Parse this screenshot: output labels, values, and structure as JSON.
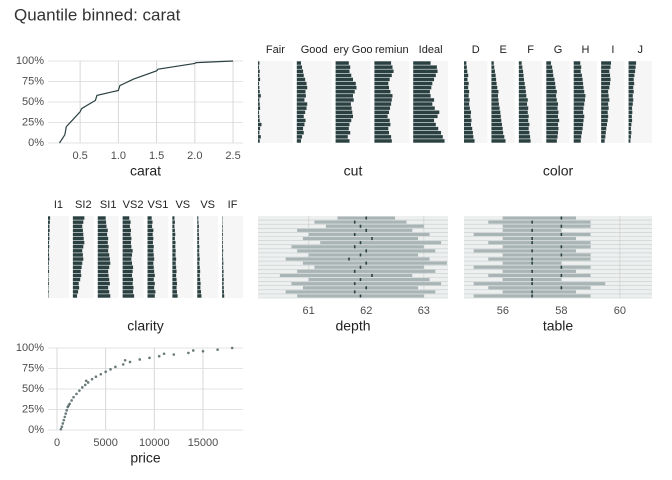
{
  "title": "Quantile binned: carat",
  "chart_data": [
    {
      "type": "line",
      "x_label": "carat",
      "x": [
        0.23,
        0.3,
        0.32,
        0.4,
        0.5,
        0.52,
        0.7,
        0.72,
        0.9,
        1.0,
        1.02,
        1.2,
        1.5,
        1.52,
        2.0,
        2.02,
        2.5
      ],
      "values": [
        0,
        10,
        20,
        28,
        38,
        42,
        52,
        58,
        62,
        64,
        70,
        78,
        88,
        90,
        97,
        98,
        100
      ],
      "xlim": [
        0.08,
        2.63
      ],
      "xticks": [
        0.5,
        {
          "value": 1,
          "label": "1.0"
        },
        1.5,
        {
          "value": 2,
          "label": "2.0"
        },
        2.5
      ],
      "ylim": [
        0,
        100
      ],
      "yticks": [
        {
          "value": 0,
          "label": "0%"
        },
        {
          "value": 25,
          "label": "25%"
        },
        {
          "value": 50,
          "label": "50%"
        },
        {
          "value": 75,
          "label": "75%"
        },
        {
          "value": 100,
          "label": "100%"
        }
      ],
      "color": "#2b4141"
    },
    {
      "type": "facet_bar",
      "x_label": "cut",
      "bins": [
        0,
        5,
        10,
        15,
        20,
        25,
        30,
        35,
        40,
        45,
        50,
        55,
        60,
        65,
        70,
        75,
        80,
        85,
        90,
        95,
        100
      ],
      "ylim": [
        0,
        100
      ],
      "xlim": [
        0,
        1
      ],
      "color": "#2b4141",
      "facets": [
        {
          "name": "Fair",
          "values": [
            0.05,
            0.08,
            0.04,
            0.06,
            0.1,
            0.05,
            0.04,
            0.03,
            0.06,
            0.05,
            0.04,
            0.08,
            0.05,
            0.04,
            0.03,
            0.06,
            0.04,
            0.05,
            0.03,
            0.04
          ]
        },
        {
          "name": "Good",
          "values": [
            0.12,
            0.15,
            0.2,
            0.18,
            0.22,
            0.25,
            0.2,
            0.24,
            0.28,
            0.3,
            0.22,
            0.26,
            0.25,
            0.3,
            0.28,
            0.24,
            0.2,
            0.18,
            0.15,
            0.12
          ]
        },
        {
          "name": "ery Goo",
          "values": [
            0.4,
            0.35,
            0.42,
            0.38,
            0.4,
            0.45,
            0.5,
            0.48,
            0.46,
            0.44,
            0.52,
            0.5,
            0.55,
            0.6,
            0.58,
            0.5,
            0.45,
            0.4,
            0.42,
            0.38
          ]
        },
        {
          "name": "remiun",
          "values": [
            0.5,
            0.48,
            0.42,
            0.4,
            0.46,
            0.44,
            0.38,
            0.42,
            0.45,
            0.48,
            0.5,
            0.52,
            0.46,
            0.42,
            0.4,
            0.44,
            0.5,
            0.55,
            0.52,
            0.48
          ]
        },
        {
          "name": "Ideal",
          "values": [
            0.9,
            0.85,
            0.8,
            0.72,
            0.65,
            0.6,
            0.7,
            0.75,
            0.62,
            0.55,
            0.6,
            0.5,
            0.48,
            0.52,
            0.55,
            0.6,
            0.65,
            0.7,
            0.68,
            0.5
          ]
        }
      ]
    },
    {
      "type": "facet_bar",
      "x_label": "color",
      "bins": [
        0,
        5,
        10,
        15,
        20,
        25,
        30,
        35,
        40,
        45,
        50,
        55,
        60,
        65,
        70,
        75,
        80,
        85,
        90,
        95,
        100
      ],
      "ylim": [
        0,
        100
      ],
      "xlim": [
        0,
        1
      ],
      "color": "#2b4141",
      "facets": [
        {
          "name": "D",
          "values": [
            0.45,
            0.4,
            0.38,
            0.35,
            0.3,
            0.32,
            0.28,
            0.3,
            0.25,
            0.22,
            0.24,
            0.2,
            0.22,
            0.18,
            0.2,
            0.15,
            0.18,
            0.14,
            0.12,
            0.1
          ]
        },
        {
          "name": "E",
          "values": [
            0.6,
            0.55,
            0.5,
            0.48,
            0.45,
            0.42,
            0.4,
            0.38,
            0.35,
            0.32,
            0.3,
            0.28,
            0.3,
            0.25,
            0.22,
            0.2,
            0.18,
            0.15,
            0.12,
            0.1
          ]
        },
        {
          "name": "F",
          "values": [
            0.5,
            0.48,
            0.45,
            0.42,
            0.45,
            0.4,
            0.42,
            0.38,
            0.4,
            0.35,
            0.38,
            0.32,
            0.3,
            0.28,
            0.25,
            0.22,
            0.2,
            0.18,
            0.15,
            0.12
          ]
        },
        {
          "name": "G",
          "values": [
            0.45,
            0.48,
            0.5,
            0.52,
            0.5,
            0.55,
            0.5,
            0.52,
            0.48,
            0.5,
            0.45,
            0.42,
            0.45,
            0.4,
            0.38,
            0.35,
            0.3,
            0.28,
            0.25,
            0.2
          ]
        },
        {
          "name": "H",
          "values": [
            0.3,
            0.32,
            0.35,
            0.38,
            0.4,
            0.42,
            0.45,
            0.4,
            0.42,
            0.45,
            0.48,
            0.5,
            0.45,
            0.42,
            0.4,
            0.38,
            0.35,
            0.3,
            0.32,
            0.28
          ]
        },
        {
          "name": "I",
          "values": [
            0.15,
            0.18,
            0.2,
            0.22,
            0.25,
            0.28,
            0.3,
            0.28,
            0.32,
            0.3,
            0.35,
            0.32,
            0.3,
            0.35,
            0.38,
            0.4,
            0.38,
            0.35,
            0.4,
            0.42
          ]
        },
        {
          "name": "J",
          "values": [
            0.08,
            0.1,
            0.12,
            0.1,
            0.12,
            0.15,
            0.14,
            0.16,
            0.15,
            0.18,
            0.2,
            0.18,
            0.22,
            0.2,
            0.24,
            0.22,
            0.25,
            0.28,
            0.3,
            0.32
          ]
        }
      ]
    },
    {
      "type": "facet_bar",
      "x_label": "clarity",
      "bins": [
        0,
        5,
        10,
        15,
        20,
        25,
        30,
        35,
        40,
        45,
        50,
        55,
        60,
        65,
        70,
        75,
        80,
        85,
        90,
        95,
        100
      ],
      "ylim": [
        0,
        100
      ],
      "xlim": [
        0,
        1
      ],
      "color": "#2b4141",
      "facets": [
        {
          "name": "I1",
          "values": [
            0.02,
            0.03,
            0.02,
            0.04,
            0.03,
            0.02,
            0.05,
            0.03,
            0.04,
            0.06,
            0.05,
            0.04,
            0.06,
            0.05,
            0.07,
            0.06,
            0.08,
            0.07,
            0.09,
            0.1
          ]
        },
        {
          "name": "SI2",
          "values": [
            0.2,
            0.25,
            0.3,
            0.28,
            0.35,
            0.4,
            0.38,
            0.42,
            0.45,
            0.5,
            0.48,
            0.45,
            0.5,
            0.55,
            0.52,
            0.5,
            0.48,
            0.45,
            0.5,
            0.55
          ]
        },
        {
          "name": "SI1",
          "values": [
            0.6,
            0.55,
            0.5,
            0.58,
            0.55,
            0.52,
            0.5,
            0.55,
            0.6,
            0.58,
            0.55,
            0.5,
            0.52,
            0.48,
            0.5,
            0.45,
            0.48,
            0.42,
            0.4,
            0.38
          ]
        },
        {
          "name": "VS2",
          "values": [
            0.55,
            0.5,
            0.52,
            0.48,
            0.5,
            0.45,
            0.48,
            0.5,
            0.45,
            0.42,
            0.45,
            0.48,
            0.42,
            0.4,
            0.42,
            0.38,
            0.4,
            0.35,
            0.38,
            0.32
          ]
        },
        {
          "name": "VS1",
          "values": [
            0.35,
            0.38,
            0.32,
            0.35,
            0.3,
            0.35,
            0.32,
            0.3,
            0.28,
            0.32,
            0.3,
            0.28,
            0.3,
            0.26,
            0.28,
            0.25,
            0.28,
            0.22,
            0.24,
            0.2
          ]
        },
        {
          "name": "VS",
          "values": [
            0.25,
            0.22,
            0.2,
            0.22,
            0.2,
            0.18,
            0.2,
            0.18,
            0.16,
            0.18,
            0.15,
            0.16,
            0.14,
            0.15,
            0.12,
            0.14,
            0.12,
            0.1,
            0.12,
            0.1
          ]
        },
        {
          "name": "VS",
          "values": [
            0.2,
            0.18,
            0.15,
            0.16,
            0.14,
            0.12,
            0.14,
            0.12,
            0.1,
            0.12,
            0.1,
            0.09,
            0.1,
            0.08,
            0.09,
            0.08,
            0.07,
            0.08,
            0.06,
            0.05
          ]
        },
        {
          "name": "IF",
          "values": [
            0.1,
            0.09,
            0.08,
            0.07,
            0.08,
            0.06,
            0.07,
            0.05,
            0.06,
            0.05,
            0.04,
            0.05,
            0.04,
            0.04,
            0.03,
            0.04,
            0.03,
            0.03,
            0.02,
            0.02
          ]
        }
      ]
    },
    {
      "type": "range",
      "x_label": "depth",
      "bins": [
        0,
        5,
        10,
        15,
        20,
        25,
        30,
        35,
        40,
        45,
        50,
        55,
        60,
        65,
        70,
        75,
        80,
        85,
        90,
        95,
        100
      ],
      "ylim": [
        0,
        100
      ],
      "xlim": [
        60.12,
        63.42
      ],
      "xticks": [
        61,
        62,
        63
      ],
      "color": "#a9b5b5",
      "low": [
        60.8,
        60.6,
        60.9,
        60.7,
        61.0,
        60.5,
        60.8,
        61.1,
        60.9,
        60.6,
        61.0,
        60.8,
        60.7,
        61.2,
        60.9,
        61.0,
        60.8,
        61.3,
        61.1,
        61.5
      ],
      "high": [
        63.0,
        63.2,
        62.9,
        63.3,
        63.1,
        62.8,
        63.2,
        63.0,
        63.4,
        63.1,
        62.9,
        63.2,
        63.0,
        63.3,
        62.9,
        63.1,
        62.8,
        63.0,
        62.7,
        62.5
      ],
      "median": [
        61.9,
        61.8,
        62.0,
        61.8,
        61.9,
        62.1,
        61.8,
        61.9,
        62.0,
        61.7,
        61.9,
        62.0,
        61.8,
        61.9,
        62.1,
        61.8,
        62.0,
        61.9,
        61.8,
        62.0
      ]
    },
    {
      "type": "range",
      "x_label": "table",
      "bins": [
        0,
        5,
        10,
        15,
        20,
        25,
        30,
        35,
        40,
        45,
        50,
        55,
        60,
        65,
        70,
        75,
        80,
        85,
        90,
        95,
        100
      ],
      "ylim": [
        0,
        100
      ],
      "xlim": [
        54.67,
        61.1
      ],
      "xticks": [
        56,
        58,
        60
      ],
      "color": "#a9b5b5",
      "low": [
        55.0,
        56.0,
        55.5,
        55.0,
        56.0,
        55.5,
        56.0,
        55.0,
        56.0,
        55.5,
        56.0,
        55.0,
        56.0,
        55.5,
        56.0,
        55.0,
        56.0,
        56.0,
        55.5,
        56.0
      ],
      "high": [
        59.0,
        58.5,
        59.0,
        59.5,
        58.0,
        59.0,
        58.5,
        59.0,
        58.0,
        59.0,
        59.0,
        58.5,
        59.0,
        59.0,
        58.5,
        59.0,
        58.0,
        59.0,
        59.0,
        58.5
      ],
      "median": [
        57,
        57,
        58,
        57,
        57,
        58,
        57,
        58,
        57,
        57,
        58,
        57,
        58,
        57,
        57,
        58,
        57,
        58,
        57,
        58
      ]
    },
    {
      "type": "scatter",
      "x_label": "price",
      "xlim": [
        -925,
        19110
      ],
      "xticks": [
        0,
        5000,
        10000,
        15000
      ],
      "ylim": [
        0,
        100
      ],
      "yticks": [
        {
          "value": 0,
          "label": "0%"
        },
        {
          "value": 25,
          "label": "25%"
        },
        {
          "value": 50,
          "label": "50%"
        },
        {
          "value": 75,
          "label": "75%"
        },
        {
          "value": 100,
          "label": "100%"
        }
      ],
      "color": "#2b4141",
      "x": [
        400,
        500,
        600,
        700,
        800,
        900,
        1000,
        1100,
        1300,
        1500,
        1700,
        2000,
        2300,
        2600,
        2900,
        3200,
        3600,
        4000,
        4500,
        5000,
        5500,
        6000,
        6800,
        7500,
        8500,
        9500,
        10500,
        12000,
        13500,
        15000,
        16500,
        18000,
        1200,
        3000,
        7000,
        11000,
        14000
      ],
      "values": [
        1,
        4,
        8,
        12,
        16,
        20,
        24,
        28,
        32,
        36,
        40,
        44,
        48,
        52,
        55,
        58,
        62,
        65,
        68,
        71,
        74,
        77,
        80,
        83,
        86,
        88,
        90,
        92,
        94,
        96,
        98,
        100,
        30,
        60,
        85,
        93,
        97
      ]
    }
  ]
}
